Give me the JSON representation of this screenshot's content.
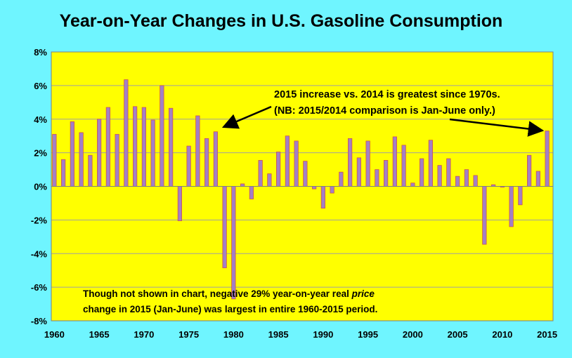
{
  "chart_data": {
    "type": "bar",
    "title": "Year-on-Year Changes in U.S. Gasoline Consumption",
    "xlabel": "",
    "ylabel": "",
    "ylim": [
      -8,
      8
    ],
    "yticks": [
      "8%",
      "6%",
      "4%",
      "2%",
      "0%",
      "-2%",
      "-4%",
      "-6%",
      "-8%"
    ],
    "xticks": [
      "1960",
      "1965",
      "1970",
      "1975",
      "1980",
      "1985",
      "1990",
      "1995",
      "2000",
      "2005",
      "2010",
      "2015"
    ],
    "grid": true,
    "bar_color": "#a280c6",
    "plot_background": "#ffff00",
    "years": [
      1960,
      1961,
      1962,
      1963,
      1964,
      1965,
      1966,
      1967,
      1968,
      1969,
      1970,
      1971,
      1972,
      1973,
      1974,
      1975,
      1976,
      1977,
      1978,
      1979,
      1980,
      1981,
      1982,
      1983,
      1984,
      1985,
      1986,
      1987,
      1988,
      1989,
      1990,
      1991,
      1992,
      1993,
      1994,
      1995,
      1996,
      1997,
      1998,
      1999,
      2000,
      2001,
      2002,
      2003,
      2004,
      2005,
      2006,
      2007,
      2008,
      2009,
      2010,
      2011,
      2012,
      2013,
      2014,
      2015
    ],
    "values": [
      3.1,
      1.6,
      3.85,
      3.2,
      1.85,
      4.0,
      4.7,
      3.1,
      6.35,
      4.75,
      4.7,
      3.95,
      6.0,
      4.65,
      -2.05,
      2.4,
      4.2,
      2.85,
      3.25,
      -4.85,
      -6.7,
      0.15,
      -0.75,
      1.55,
      0.75,
      2.05,
      3.0,
      2.7,
      1.5,
      -0.15,
      -1.3,
      -0.4,
      0.85,
      2.85,
      1.7,
      2.7,
      1.0,
      1.55,
      2.95,
      2.45,
      0.2,
      1.65,
      2.75,
      1.25,
      1.65,
      0.6,
      1.0,
      0.65,
      -3.45,
      0.1,
      -0.05,
      -2.4,
      -1.1,
      1.85,
      0.9,
      3.3
    ]
  },
  "annotations": {
    "top_line1": "2015 increase vs. 2014 is greatest since 1970s.",
    "top_line2": "(NB: 2015/2014  comparison is Jan-June only.)",
    "bottom_line1_a": "Though not shown in chart, negative 29% year-on-year real ",
    "bottom_line1_b": "price",
    "bottom_line2": "change in 2015 (Jan-June) was largest in entire 1960-2015 period."
  }
}
